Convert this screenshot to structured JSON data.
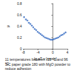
{
  "chart_data": {
    "type": "scatter",
    "x_label": "lg aT·v [mm/s]",
    "y_label": "μ",
    "annotations": [
      "11 temperatures between -15 °C and 96 °C",
      "SiC paper grade 180 with MgO powder to reduce adhesion"
    ],
    "color": "#2f66c0",
    "marker": "circle",
    "x": [
      -7.8,
      -7.3,
      -6.9,
      -6.5,
      -6.1,
      -5.7,
      -5.3,
      -4.9,
      -4.5,
      -4.1,
      -3.7,
      -3.3,
      -2.9,
      -2.5,
      -2.1,
      -1.7,
      -1.3,
      -0.9,
      -0.5,
      -0.1,
      0.3,
      0.7,
      1.1,
      1.5,
      1.9,
      2.3,
      2.7,
      3.1,
      3.5
    ],
    "values": [
      0.56,
      0.52,
      0.5,
      0.46,
      0.44,
      0.41,
      0.38,
      0.35,
      0.33,
      0.3,
      0.28,
      0.26,
      0.24,
      0.22,
      0.2,
      0.19,
      0.18,
      0.17,
      0.16,
      0.16,
      0.17,
      0.18,
      0.19,
      0.2,
      0.22,
      0.24,
      0.25,
      0.27,
      0.29
    ],
    "xlim": [
      -8,
      4
    ],
    "xticks": [
      -8,
      -4,
      0,
      4
    ],
    "ylim": [
      0,
      0.8
    ],
    "yticks": [
      0,
      0.2,
      0.4,
      0.6,
      0.8
    ],
    "grid": false
  }
}
